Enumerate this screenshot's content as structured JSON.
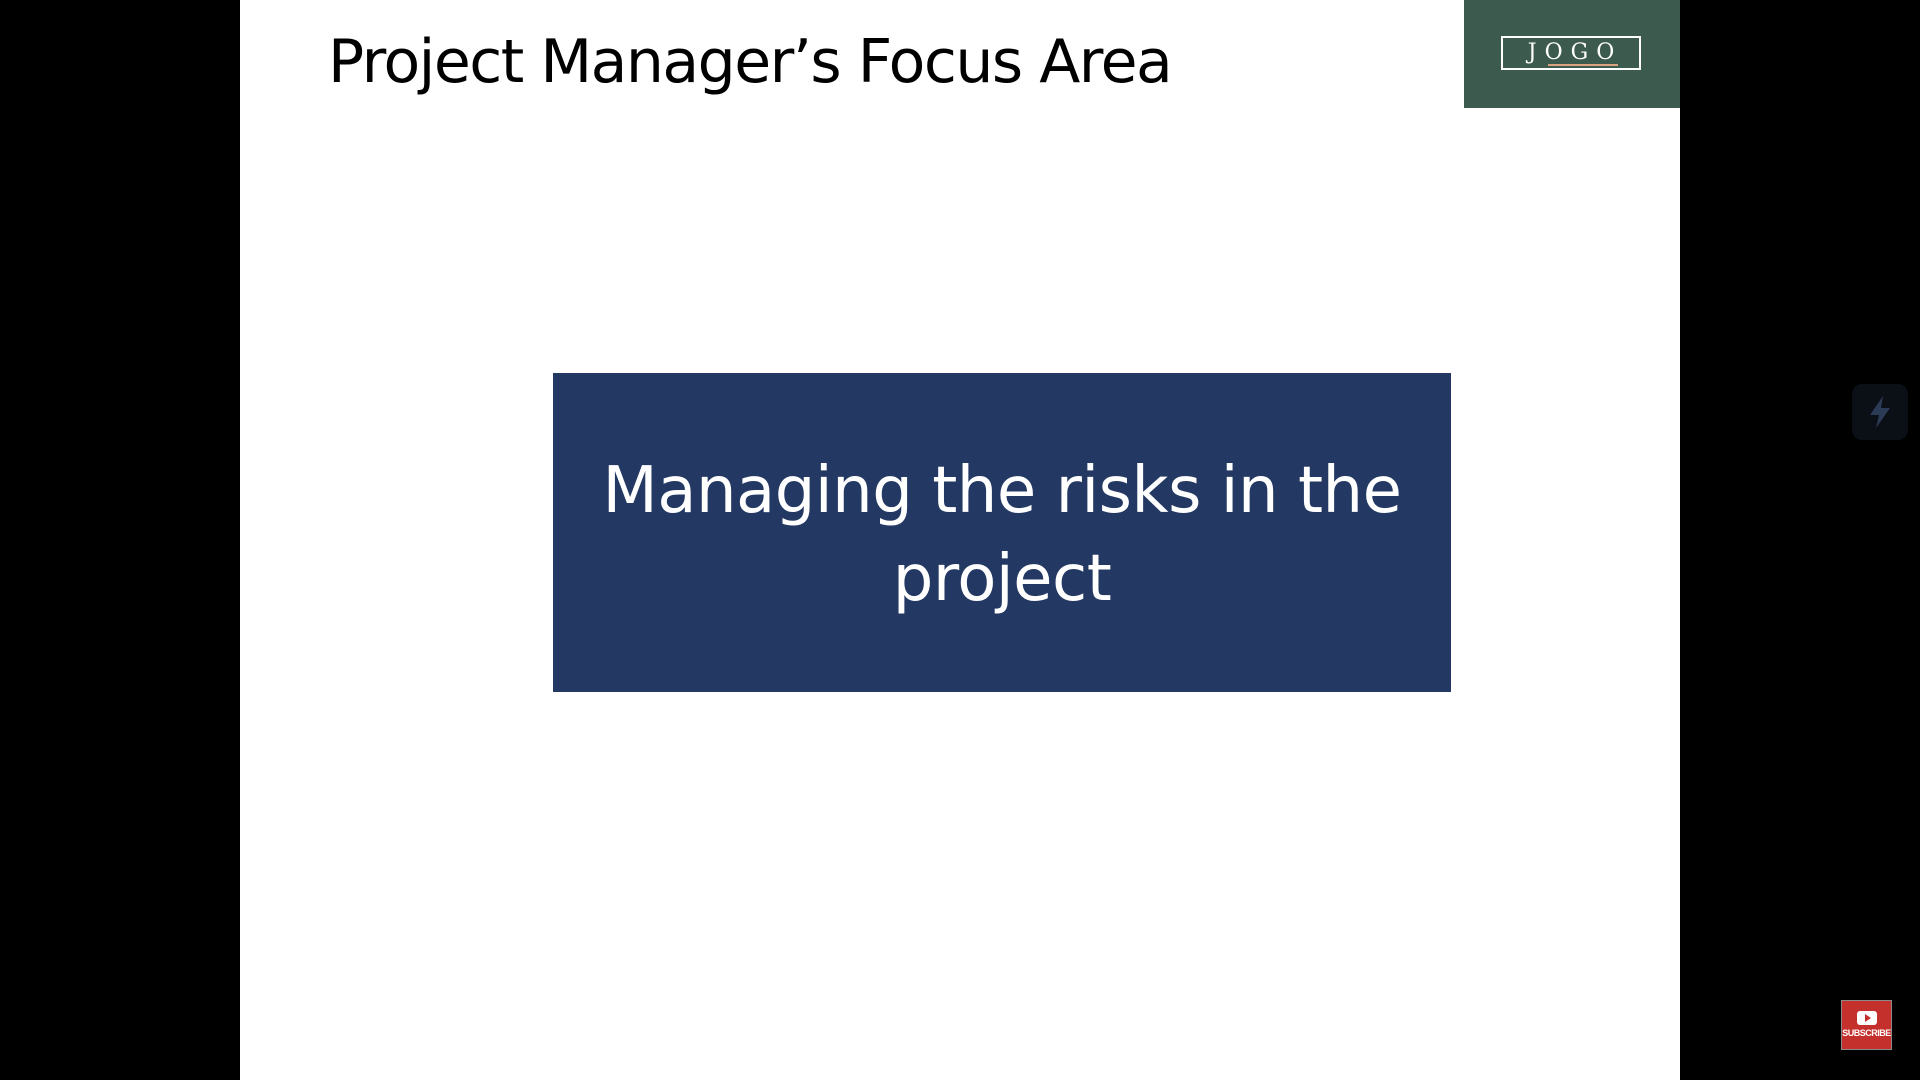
{
  "slide": {
    "title": "Project Manager’s Focus Area",
    "logo_text": "JOGO",
    "focus_text": "Managing the risks in the project",
    "focus_box_color": "#233862",
    "logo_panel_color": "#3d5a4e"
  },
  "overlay": {
    "side_widget_icon": "lightning-bolt-icon",
    "subscribe_label": "SUBSCRIBE",
    "subscribe_icon": "youtube-play-icon"
  }
}
